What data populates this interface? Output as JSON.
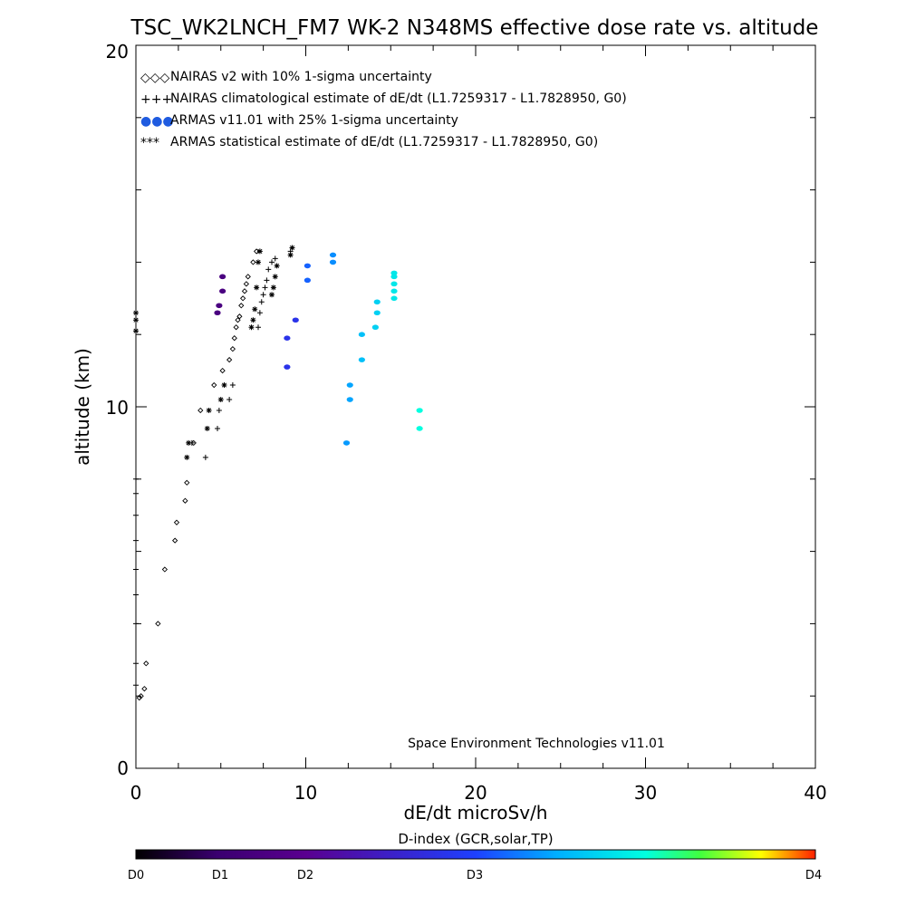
{
  "chart_data": {
    "type": "scatter",
    "title": "TSC_WK2LNCH_FM7 WK-2 N348MS effective dose rate vs. altitude",
    "xlabel": "dE/dt microSv/h",
    "ylabel": "altitude (km)",
    "xlim": [
      0,
      40
    ],
    "ylim": [
      0,
      20
    ],
    "x_ticks": [
      "0",
      "10",
      "20",
      "30",
      "40"
    ],
    "y_ticks": [
      "0",
      "10",
      "20"
    ],
    "grid": false,
    "legend_position": "top-left",
    "annotation": "Space Environment Technologies v11.01",
    "series": [
      {
        "name": "NAIRAS v2 with 10% 1-sigma uncertainty",
        "marker": "diamond",
        "color": "#000000",
        "legend_marker": "◇◇◇",
        "x": [
          0.2,
          0.3,
          0.5,
          0.6,
          1.3,
          1.7,
          2.3,
          2.4,
          2.9,
          3.0,
          3.4,
          3.8,
          4.6,
          5.1,
          5.5,
          5.7,
          5.8,
          5.9,
          6.0,
          6.1,
          6.2,
          6.3,
          6.4,
          6.5,
          6.6,
          6.9,
          7.1
        ],
        "y": [
          1.95,
          2.0,
          2.2,
          2.9,
          4.0,
          5.5,
          6.3,
          6.8,
          7.4,
          7.9,
          9.0,
          9.9,
          10.6,
          11.0,
          11.3,
          11.6,
          11.9,
          12.2,
          12.4,
          12.5,
          12.8,
          13.0,
          13.2,
          13.4,
          13.6,
          14.0,
          14.3
        ]
      },
      {
        "name": "NAIRAS climatological estimate of dE/dt (L1.7259317 - L1.7828950, G0)",
        "marker": "plus",
        "color": "#000000",
        "legend_marker": "+++",
        "x": [
          0.0,
          0.0,
          0.0,
          0.0,
          0.0,
          0.0,
          0.0,
          0.0,
          0.0,
          3.3,
          4.1,
          4.8,
          4.9,
          5.5,
          5.7,
          7.2,
          7.3,
          7.4,
          7.5,
          7.6,
          7.7,
          7.8,
          8.0,
          8.2,
          9.1
        ],
        "y": [
          2.3,
          2.9,
          4.0,
          4.8,
          5.5,
          6.3,
          7.0,
          7.6,
          8.0,
          9.0,
          8.6,
          9.4,
          9.9,
          10.2,
          10.6,
          12.2,
          12.6,
          12.9,
          13.1,
          13.3,
          13.5,
          13.8,
          14.0,
          14.1,
          14.3
        ]
      },
      {
        "name": "ARMAS v11.01 with 25% 1-sigma uncertainty",
        "marker": "dot",
        "color": "#1f5be0",
        "legend_marker": "●●●",
        "x": [
          4.8,
          4.9,
          5.1,
          5.1,
          8.9,
          8.9,
          9.4,
          10.1,
          10.1,
          11.6,
          11.6,
          12.4,
          12.6,
          12.6,
          13.3,
          13.3,
          14.1,
          14.2,
          14.2,
          15.2,
          15.2,
          15.2,
          15.2,
          15.2,
          16.7,
          16.7
        ],
        "y": [
          12.6,
          12.8,
          13.2,
          13.6,
          11.1,
          11.9,
          12.4,
          13.5,
          13.9,
          14.0,
          14.2,
          9.0,
          10.2,
          10.6,
          11.3,
          12.0,
          12.2,
          12.6,
          12.9,
          13.0,
          13.2,
          13.4,
          13.6,
          13.7,
          9.4,
          9.9
        ],
        "d_index": [
          0.75,
          0.75,
          0.75,
          0.75,
          1.8,
          1.8,
          1.8,
          2.15,
          2.15,
          2.35,
          2.35,
          2.4,
          2.45,
          2.45,
          2.6,
          2.6,
          2.7,
          2.7,
          2.7,
          2.85,
          2.85,
          2.85,
          2.85,
          2.85,
          3.0,
          3.0
        ]
      },
      {
        "name": "ARMAS statistical estimate of dE/dt (L1.7259317 - L1.7828950, G0)",
        "marker": "asterisk",
        "color": "#000000",
        "legend_marker": "***",
        "x": [
          0.0,
          0.0,
          0.0,
          3.0,
          3.1,
          4.2,
          4.3,
          5.0,
          5.2,
          6.8,
          6.9,
          7.0,
          7.1,
          7.2,
          7.3,
          8.0,
          8.1,
          8.2,
          8.3,
          9.1,
          9.2
        ],
        "y": [
          12.1,
          12.4,
          12.6,
          8.6,
          9.0,
          9.4,
          9.9,
          10.2,
          10.6,
          12.2,
          12.4,
          12.7,
          13.3,
          14.0,
          14.3,
          13.1,
          13.3,
          13.6,
          13.9,
          14.2,
          14.4
        ]
      }
    ],
    "colorbar": {
      "title": "D-index (GCR,solar,TP)",
      "range": [
        0,
        4
      ],
      "ticks": [
        {
          "value": 0,
          "label": "D0"
        },
        {
          "value": 1,
          "label": "D1"
        },
        {
          "value": 2,
          "label": "D2"
        },
        {
          "value": 3,
          "label": "D3"
        },
        {
          "value": 4,
          "label": "D4"
        }
      ],
      "colors": [
        "#000000",
        "#5a0090",
        "#1e40ff",
        "#00d8ff",
        "#00ff40",
        "#ffff00",
        "#ff2000"
      ]
    }
  }
}
